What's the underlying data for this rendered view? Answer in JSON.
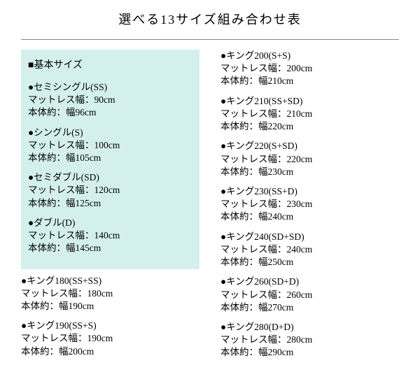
{
  "title": "選べる13サイズ組み合わせ表",
  "basic_header": "■基本サイズ",
  "colors": {
    "basic_box_bg": "#d4f0ec",
    "text": "#000000",
    "rule": "#888888"
  },
  "left_basic": [
    {
      "name": "セミシングル(SS)",
      "mattress": "マットレス幅：90cm",
      "body": "本体約：幅96cm"
    },
    {
      "name": "シングル(S)",
      "mattress": "マットレス幅：100cm",
      "body": "本体約：幅105cm"
    },
    {
      "name": "セミダブル(SD)",
      "mattress": "マットレス幅：120cm",
      "body": "本体約：幅125cm"
    },
    {
      "name": "ダブル(D)",
      "mattress": "マットレス幅：140cm",
      "body": "本体約：幅145cm"
    }
  ],
  "left_rest": [
    {
      "name": "キング180(SS+SS)",
      "mattress": "マットレス幅：180cm",
      "body": "本体約：幅190cm"
    },
    {
      "name": "キング190(SS+S)",
      "mattress": "マットレス幅：190cm",
      "body": "本体約：幅200cm"
    }
  ],
  "right": [
    {
      "name": "キング200(S+S)",
      "mattress": "マットレス幅：200cm",
      "body": "本体約：幅210cm"
    },
    {
      "name": "キング210(SS+SD)",
      "mattress": "マットレス幅：210cm",
      "body": "本体約：幅220cm"
    },
    {
      "name": "キング220(S+SD)",
      "mattress": "マットレス幅：220cm",
      "body": "本体約：幅230cm"
    },
    {
      "name": "キング230(SS+D)",
      "mattress": "マットレス幅：230cm",
      "body": "本体約：幅240cm"
    },
    {
      "name": "キング240(SD+SD)",
      "mattress": "マットレス幅：240cm",
      "body": "本体約：幅250cm"
    },
    {
      "name": "キング260(SD+D)",
      "mattress": "マットレス幅：260cm",
      "body": "本体約：幅270cm"
    },
    {
      "name": "キング280(D+D)",
      "mattress": "マットレス幅：280cm",
      "body": "本体約：幅290cm"
    }
  ]
}
